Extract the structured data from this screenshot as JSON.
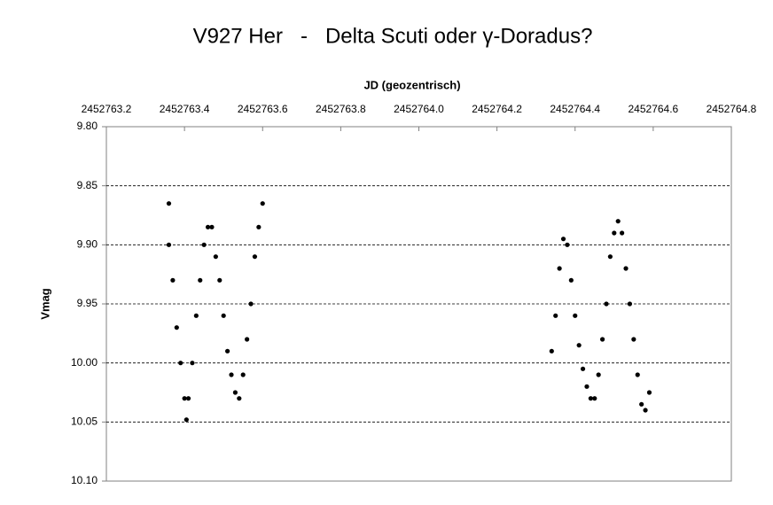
{
  "chart_data": {
    "type": "scatter",
    "title": "V927 Her   -   Delta Scuti oder γ-Doradus?",
    "x_label": "JD (geozentrisch)",
    "y_label": "Vmag",
    "color": "#000000",
    "xlim": [
      2452763.2,
      2452764.8
    ],
    "xticks": [
      2452763.2,
      2452763.4,
      2452763.6,
      2452763.8,
      {
        "value": 2452764.0,
        "label": "2452764.0"
      },
      2452764.2,
      2452764.4,
      2452764.6,
      2452764.8
    ],
    "ylim": [
      9.8,
      10.1
    ],
    "yinverted": true,
    "yticks": [
      {
        "value": 9.8,
        "label": "9.80"
      },
      9.85,
      {
        "value": 9.9,
        "label": "9.90"
      },
      9.95,
      {
        "value": 10.0,
        "label": "10.00"
      },
      10.05,
      {
        "value": 10.1,
        "label": "10.10"
      }
    ],
    "grid": true,
    "x": [
      2452763.36,
      2452763.36,
      2452763.37,
      2452763.38,
      2452763.39,
      2452763.4,
      2452763.405,
      2452763.41,
      2452763.42,
      2452763.43,
      2452763.44,
      2452763.45,
      2452763.46,
      2452763.47,
      2452763.48,
      2452763.49,
      2452763.5,
      2452763.51,
      2452763.52,
      2452763.53,
      2452763.54,
      2452763.55,
      2452763.56,
      2452763.57,
      2452763.58,
      2452763.59,
      2452763.6,
      2452764.34,
      2452764.35,
      2452764.36,
      2452764.37,
      2452764.38,
      2452764.39,
      2452764.4,
      2452764.41,
      2452764.42,
      2452764.43,
      2452764.44,
      2452764.45,
      2452764.46,
      2452764.47,
      2452764.48,
      2452764.49,
      2452764.5,
      2452764.51,
      2452764.52,
      2452764.53,
      2452764.54,
      2452764.55,
      2452764.56,
      2452764.57,
      2452764.58,
      2452764.59
    ],
    "values": [
      9.865,
      9.9,
      9.93,
      9.97,
      10.0,
      10.03,
      10.048,
      10.03,
      10.0,
      9.96,
      9.93,
      9.9,
      9.885,
      9.885,
      9.91,
      9.93,
      9.96,
      9.99,
      10.01,
      10.025,
      10.03,
      10.01,
      9.98,
      9.95,
      9.91,
      9.885,
      9.865,
      9.99,
      9.96,
      9.92,
      9.895,
      9.9,
      9.93,
      9.96,
      9.985,
      10.005,
      10.02,
      10.03,
      10.03,
      10.01,
      9.98,
      9.95,
      9.91,
      9.89,
      9.88,
      9.89,
      9.92,
      9.95,
      9.98,
      10.01,
      10.035,
      10.04,
      10.025
    ]
  }
}
